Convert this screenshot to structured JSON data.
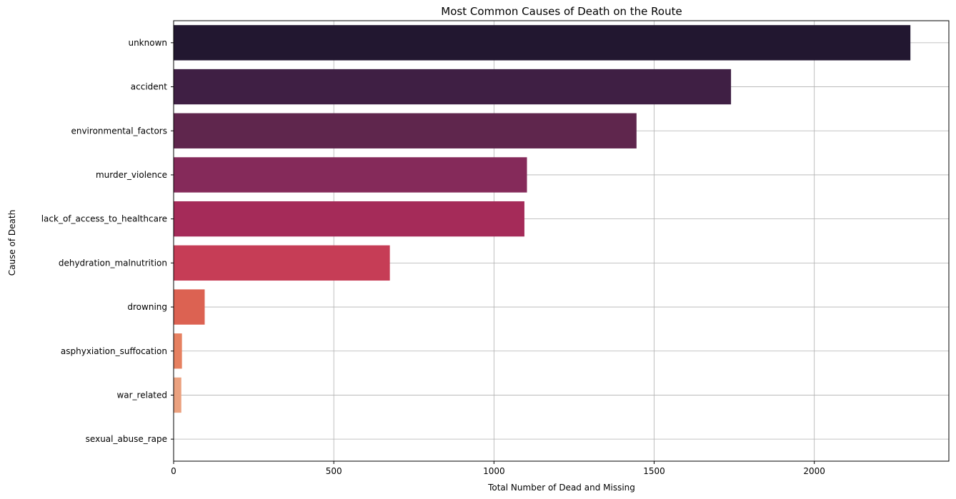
{
  "chart_data": {
    "type": "bar",
    "orientation": "horizontal",
    "title": "Most Common Causes of Death on the Route",
    "xlabel": "Total Number of Dead and Missing",
    "ylabel": "Cause of Death",
    "xlim": [
      0,
      2420
    ],
    "xticks": [
      0,
      500,
      1000,
      1500,
      2000
    ],
    "grid": true,
    "categories": [
      "unknown",
      "accident",
      "environmental_factors",
      "murder_violence",
      "lack_of_access_to_healthcare",
      "dehydration_malnutrition",
      "drowning",
      "asphyxiation_suffocation",
      "war_related",
      "sexual_abuse_rape"
    ],
    "values": [
      2300,
      1740,
      1445,
      1103,
      1095,
      675,
      97,
      26,
      24,
      1
    ],
    "colors": [
      "#221730",
      "#3f1f44",
      "#5f264d",
      "#852a5a",
      "#a52b59",
      "#c63d56",
      "#dc6252",
      "#e68060",
      "#eba17f",
      "#f0c09c"
    ]
  }
}
